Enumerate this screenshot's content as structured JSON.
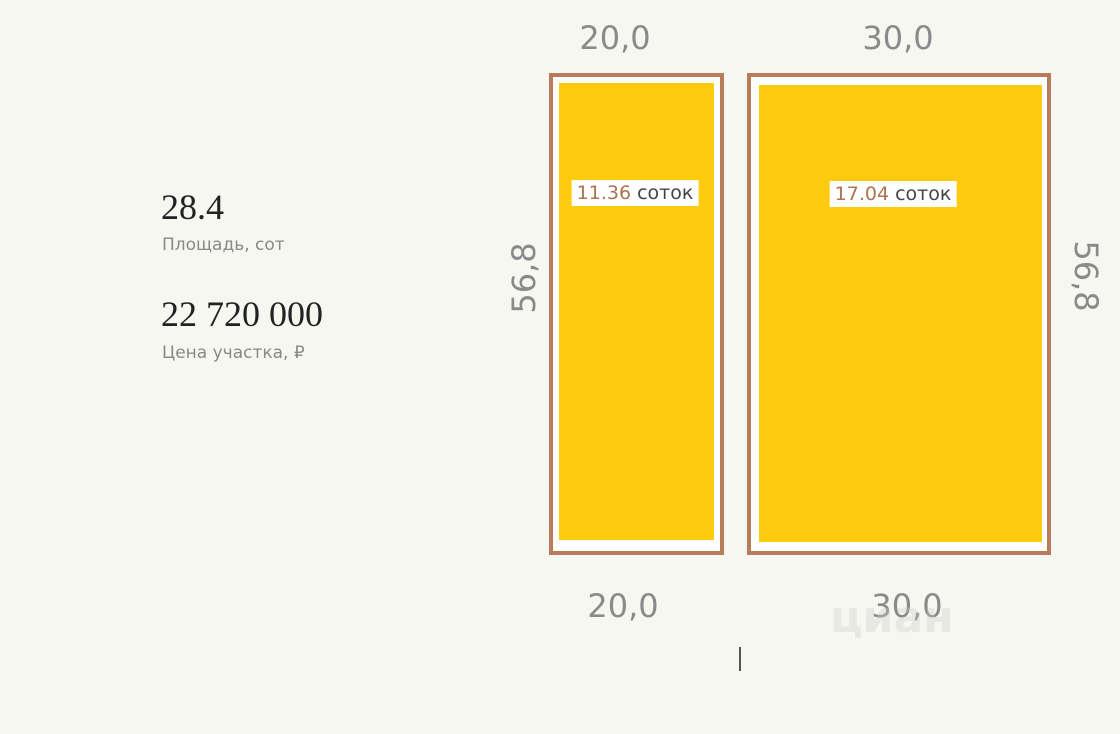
{
  "stats": [
    {
      "value": "28.4",
      "label": "Площадь, сот"
    },
    {
      "value": "22 720 000",
      "label": "Цена участка, ₽"
    }
  ],
  "plots": [
    {
      "top": "20,0",
      "bottom": "20,0",
      "side": "56,8",
      "area": "11.36",
      "unit": "соток"
    },
    {
      "top": "30,0",
      "bottom": "30,0",
      "side": "56,8",
      "area": "17.04",
      "unit": "соток"
    }
  ],
  "watermark": "циан"
}
